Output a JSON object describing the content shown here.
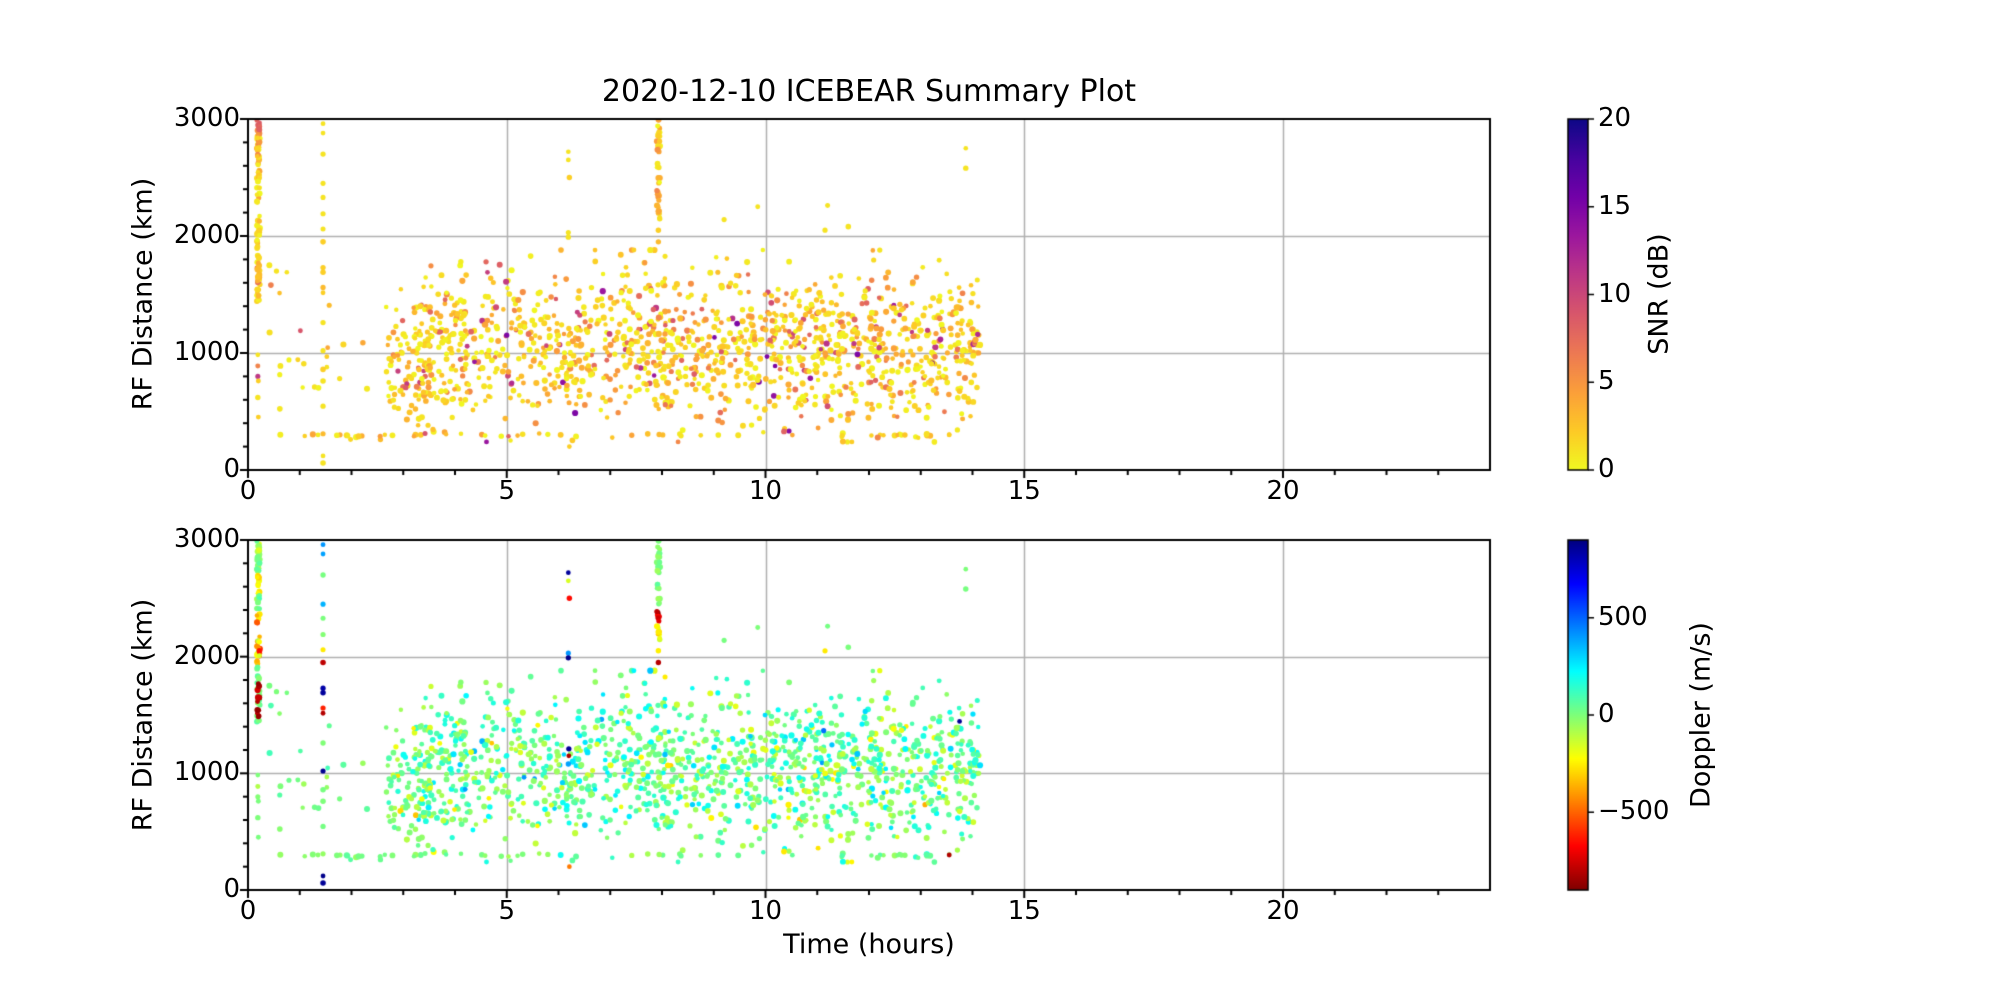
{
  "figure": {
    "title": "2020-12-10 ICEBEAR Summary Plot",
    "background_color": "#ffffff",
    "spine_color": "#000000",
    "grid_color": "#b0b0b0",
    "text_color": "#000000"
  },
  "chart_data": [
    {
      "panel": "snr",
      "type": "scatter",
      "title": "2020-12-10 ICEBEAR Summary Plot",
      "xlabel": "",
      "ylabel": "RF Distance (km)",
      "xlim": [
        0,
        24
      ],
      "ylim": [
        0,
        3000
      ],
      "x_ticks": [
        0,
        5,
        10,
        15,
        20
      ],
      "x_tick_labels": [
        "0",
        "5",
        "10",
        "15",
        "20"
      ],
      "x_minor_step": 1,
      "y_ticks": [
        0,
        1000,
        2000,
        3000
      ],
      "y_tick_labels": [
        "0",
        "1000",
        "2000",
        "3000"
      ],
      "y_minor_step": 200,
      "grid": true,
      "colorbar": {
        "label": "SNR (dB)",
        "vmin": 0,
        "vmax": 20,
        "ticks": [
          0,
          5,
          10,
          15,
          20
        ],
        "tick_labels": [
          "0",
          "5",
          "10",
          "15",
          "20"
        ],
        "colormap": "plasma_r"
      }
    },
    {
      "panel": "doppler",
      "type": "scatter",
      "title": "",
      "xlabel": "Time (hours)",
      "ylabel": "RF Distance (km)",
      "xlim": [
        0,
        24
      ],
      "ylim": [
        0,
        3000
      ],
      "x_ticks": [
        0,
        5,
        10,
        15,
        20
      ],
      "x_tick_labels": [
        "0",
        "5",
        "10",
        "15",
        "20"
      ],
      "x_minor_step": 1,
      "y_ticks": [
        0,
        1000,
        2000,
        3000
      ],
      "y_tick_labels": [
        "0",
        "1000",
        "2000",
        "3000"
      ],
      "y_minor_step": 200,
      "grid": true,
      "colorbar": {
        "label": "Doppler (m/s)",
        "vmin": -900,
        "vmax": 900,
        "ticks": [
          -500,
          0,
          500
        ],
        "tick_labels": [
          "−500",
          "0",
          "500"
        ],
        "colormap": "jet_r"
      }
    }
  ],
  "colormaps": {
    "plasma": {
      "stops": [
        "#0d0887",
        "#46039f",
        "#7201a8",
        "#9c179e",
        "#bd3786",
        "#d8576b",
        "#ed7953",
        "#fb9f3a",
        "#fdca26",
        "#f0f921"
      ],
      "positions": [
        0,
        0.111,
        0.222,
        0.333,
        0.444,
        0.556,
        0.667,
        0.778,
        0.889,
        1
      ]
    },
    "jet": {
      "stops": [
        "#000080",
        "#0000ff",
        "#0080ff",
        "#00ffff",
        "#7dff7a",
        "#ffff00",
        "#ff8000",
        "#ff0000",
        "#800000"
      ],
      "positions": [
        0,
        0.125,
        0.25,
        0.375,
        0.5,
        0.625,
        0.75,
        0.875,
        1
      ]
    }
  },
  "scatter_points": {
    "seed": 20201210,
    "shared_between_panels": true,
    "clusters": [
      {
        "name": "main-cloud",
        "count": 1350,
        "t": [
          3.2,
          14.15
        ],
        "km": {
          "type": "gauss",
          "mean": 1060,
          "sd": 330,
          "clip": [
            240,
            1880
          ]
        },
        "snr": {
          "type": "exp",
          "scale": 2.8,
          "max": 15
        },
        "dop": {
          "type": "gauss",
          "mean": 30,
          "sd": 135,
          "clip": [
            -480,
            480
          ]
        }
      },
      {
        "name": "cloud-ramp",
        "count": 90,
        "t": [
          2.7,
          3.6
        ],
        "km": {
          "type": "gauss",
          "mean": 950,
          "sd": 300,
          "clip": [
            260,
            1600
          ]
        },
        "snr": {
          "type": "exp",
          "scale": 2.6,
          "max": 12
        },
        "dop": {
          "type": "gauss",
          "mean": 20,
          "sd": 110,
          "clip": [
            -400,
            400
          ]
        }
      },
      {
        "name": "sparse-early",
        "count": 26,
        "t": [
          0.28,
          2.7
        ],
        "km": {
          "type": "gauss",
          "mean": 950,
          "sd": 430,
          "clip": [
            260,
            1750
          ]
        },
        "snr": {
          "type": "exp",
          "scale": 2.2,
          "max": 11
        },
        "dop": {
          "type": "gauss",
          "mean": 0,
          "sd": 60,
          "clip": [
            -200,
            200
          ]
        }
      },
      {
        "name": "ground-line-300km",
        "count": 55,
        "t": [
          0.5,
          14.1
        ],
        "km": {
          "type": "gauss",
          "mean": 300,
          "sd": 12,
          "clip": [
            270,
            330
          ]
        },
        "snr": {
          "type": "exp",
          "scale": 2.2,
          "max": 9
        },
        "dop": {
          "type": "gauss",
          "mean": 0,
          "sd": 40,
          "clip": [
            -120,
            120
          ]
        }
      },
      {
        "name": "strip-0.2h-cap",
        "count": 14,
        "t": [
          0.17,
          0.23
        ],
        "km": {
          "type": "uniform",
          "range": [
            2860,
            3000
          ]
        },
        "snr": {
          "type": "uniform",
          "range": [
            5,
            8.5
          ]
        },
        "dop": {
          "type": "gauss",
          "mean": -60,
          "sd": 80,
          "clip": [
            -260,
            60
          ]
        }
      },
      {
        "name": "strip-0.2h-green-upper",
        "count": 16,
        "t": [
          0.17,
          0.23
        ],
        "km": {
          "type": "uniform",
          "range": [
            2720,
            2860
          ]
        },
        "snr": {
          "type": "exp",
          "scale": 2.2,
          "max": 6
        },
        "dop": {
          "type": "gauss",
          "mean": 0,
          "sd": 40,
          "clip": [
            -120,
            120
          ]
        }
      },
      {
        "name": "strip-0.2h-yellow-band",
        "count": 12,
        "t": [
          0.17,
          0.23
        ],
        "km": {
          "type": "uniform",
          "range": [
            2540,
            2720
          ]
        },
        "snr": {
          "type": "exp",
          "scale": 2.2,
          "max": 6
        },
        "dop": {
          "type": "gauss",
          "mean": -260,
          "sd": 50,
          "clip": [
            -380,
            -150
          ]
        }
      },
      {
        "name": "strip-0.2h-green-mid",
        "count": 10,
        "t": [
          0.17,
          0.23
        ],
        "km": {
          "type": "uniform",
          "range": [
            2390,
            2540
          ]
        },
        "snr": {
          "type": "exp",
          "scale": 2.2,
          "max": 6
        },
        "dop": {
          "type": "gauss",
          "mean": 10,
          "sd": 40,
          "clip": [
            -100,
            120
          ]
        }
      },
      {
        "name": "strip-0.2h-orange-band",
        "count": 12,
        "t": [
          0.17,
          0.23
        ],
        "km": {
          "type": "uniform",
          "range": [
            2060,
            2390
          ]
        },
        "snr": {
          "type": "exp",
          "scale": 2.4,
          "max": 7
        },
        "dop": {
          "type": "gauss",
          "mean": -350,
          "sd": 180,
          "clip": [
            -700,
            -60
          ]
        }
      },
      {
        "name": "strip-0.2h-break",
        "count": 10,
        "t": [
          0.17,
          0.23
        ],
        "km": {
          "type": "uniform",
          "range": [
            1930,
            2060
          ]
        },
        "snr": {
          "type": "exp",
          "scale": 2.4,
          "max": 7
        },
        "dop": {
          "type": "gauss",
          "mean": -300,
          "sd": 200,
          "clip": [
            -650,
            50
          ]
        }
      },
      {
        "name": "strip-0.2h-green-low",
        "count": 22,
        "t": [
          0.17,
          0.23
        ],
        "km": {
          "type": "uniform",
          "range": [
            1440,
            1930
          ]
        },
        "snr": {
          "type": "exp",
          "scale": 2.5,
          "max": 8
        },
        "dop": {
          "type": "gauss",
          "mean": 0,
          "sd": 45,
          "clip": [
            -130,
            130
          ]
        }
      },
      {
        "name": "strip-0.2h-darkred-1",
        "count": 9,
        "t": [
          0.18,
          0.22
        ],
        "km": {
          "type": "uniform",
          "range": [
            1610,
            1770
          ]
        },
        "snr": {
          "type": "uniform",
          "range": [
            1,
            4
          ]
        },
        "dop": {
          "type": "gauss",
          "mean": -820,
          "sd": 40,
          "clip": [
            -900,
            -720
          ]
        }
      },
      {
        "name": "strip-0.2h-darkred-2",
        "count": 5,
        "t": [
          0.18,
          0.22
        ],
        "km": {
          "type": "uniform",
          "range": [
            1480,
            1570
          ]
        },
        "snr": {
          "type": "uniform",
          "range": [
            1,
            4
          ]
        },
        "dop": {
          "type": "gauss",
          "mean": -830,
          "sd": 40,
          "clip": [
            -900,
            -730
          ]
        }
      },
      {
        "name": "strip-7.9h-top",
        "count": 30,
        "t": [
          7.9,
          7.96
        ],
        "km": {
          "type": "uniform",
          "range": [
            2440,
            3000
          ]
        },
        "snr": {
          "type": "exp",
          "scale": 2.5,
          "max": 7
        },
        "dop": {
          "type": "gauss",
          "mean": 5,
          "sd": 35,
          "clip": [
            -90,
            100
          ]
        }
      },
      {
        "name": "strip-7.9h-darkred",
        "count": 7,
        "t": [
          7.9,
          7.96
        ],
        "km": {
          "type": "uniform",
          "range": [
            2270,
            2430
          ]
        },
        "snr": {
          "type": "uniform",
          "range": [
            2,
            6
          ]
        },
        "dop": {
          "type": "gauss",
          "mean": -760,
          "sd": 70,
          "clip": [
            -890,
            -600
          ]
        }
      },
      {
        "name": "strip-7.9h-gold",
        "count": 9,
        "t": [
          7.9,
          7.96
        ],
        "km": {
          "type": "uniform",
          "range": [
            2140,
            2270
          ]
        },
        "snr": {
          "type": "uniform",
          "range": [
            1,
            4
          ]
        },
        "dop": {
          "type": "gauss",
          "mean": -260,
          "sd": 60,
          "clip": [
            -380,
            -140
          ]
        }
      }
    ],
    "explicit_points": {
      "fields": [
        "t",
        "km",
        "snr",
        "dop"
      ],
      "rows": [
        [
          1.45,
          2960,
          1,
          410
        ],
        [
          1.45,
          2880,
          1,
          390
        ],
        [
          1.45,
          2700,
          1,
          10
        ],
        [
          1.45,
          2450,
          1,
          360
        ],
        [
          1.45,
          2330,
          1,
          5
        ],
        [
          1.45,
          2190,
          1,
          -10
        ],
        [
          1.45,
          2060,
          1,
          -260
        ],
        [
          1.45,
          1950,
          2,
          -790
        ],
        [
          1.45,
          1730,
          2,
          830
        ],
        [
          1.45,
          1690,
          2,
          850
        ],
        [
          1.45,
          1560,
          3,
          -620
        ],
        [
          1.45,
          1515,
          2,
          -810
        ],
        [
          1.45,
          1260,
          1,
          -5
        ],
        [
          1.45,
          1020,
          1,
          870
        ],
        [
          1.45,
          860,
          2,
          10
        ],
        [
          1.45,
          760,
          1,
          0
        ],
        [
          1.45,
          545,
          1,
          15
        ],
        [
          1.45,
          310,
          3,
          -40
        ],
        [
          1.45,
          120,
          1,
          880
        ],
        [
          1.45,
          60,
          1,
          860
        ],
        [
          6.19,
          2720,
          1,
          850
        ],
        [
          6.19,
          2650,
          1,
          -160
        ],
        [
          6.21,
          2500,
          2,
          -660
        ],
        [
          6.19,
          2030,
          1,
          410
        ],
        [
          6.19,
          1990,
          1,
          880
        ],
        [
          6.2,
          1210,
          2,
          860
        ],
        [
          6.2,
          1150,
          2,
          -820
        ],
        [
          6.19,
          1080,
          1,
          390
        ],
        [
          6.21,
          200,
          2,
          -460
        ],
        [
          9.2,
          2140,
          1,
          10
        ],
        [
          11.2,
          2260,
          1,
          15
        ],
        [
          11.15,
          2050,
          1,
          -260
        ],
        [
          11.6,
          2080,
          1,
          5
        ],
        [
          13.87,
          2750,
          1,
          0
        ],
        [
          13.87,
          2580,
          1,
          10
        ],
        [
          9.85,
          2250,
          1,
          0
        ],
        [
          13.75,
          1445,
          2,
          865
        ],
        [
          13.55,
          300,
          2,
          -810
        ],
        [
          7.93,
          1950,
          3,
          -800
        ],
        [
          7.93,
          2050,
          2,
          -250
        ],
        [
          0.19,
          985,
          1,
          0
        ],
        [
          0.19,
          888,
          6,
          -90
        ],
        [
          0.19,
          800,
          11,
          -10
        ],
        [
          0.2,
          760,
          2,
          5
        ],
        [
          0.19,
          620,
          1,
          0
        ],
        [
          0.2,
          452,
          2,
          8
        ],
        [
          0.55,
          1700,
          1,
          0
        ],
        [
          0.75,
          1690,
          1,
          10
        ]
      ]
    }
  }
}
